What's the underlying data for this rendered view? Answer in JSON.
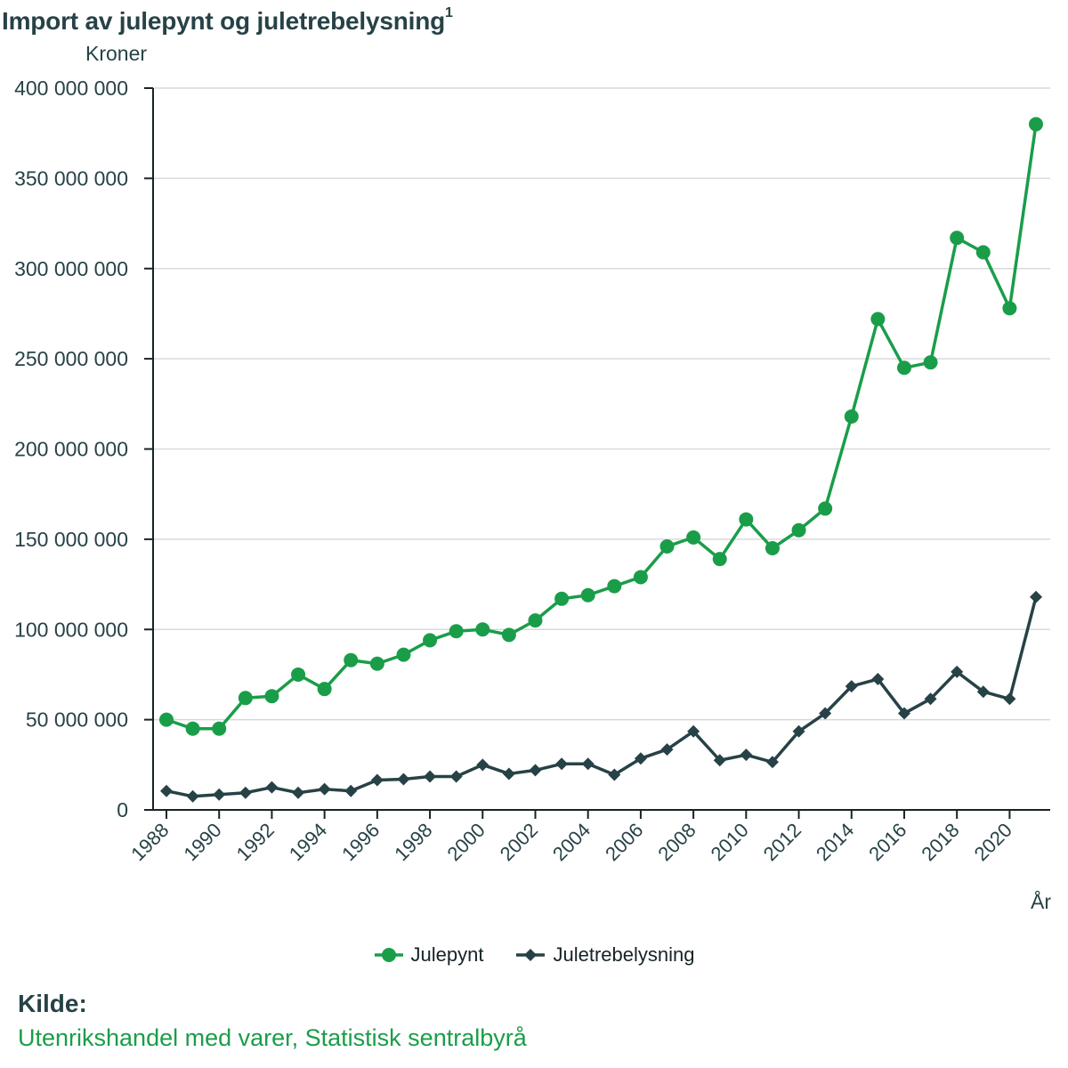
{
  "chart_data": {
    "type": "line",
    "title": "Import av julepynt og juletrebelysning",
    "title_superscript": "1",
    "ylabel": "Kroner",
    "xlabel": "År",
    "ylim": [
      0,
      400000000
    ],
    "xlim": [
      1988,
      2021
    ],
    "y_ticks": [
      {
        "value": 0,
        "label": "0"
      },
      {
        "value": 50000000,
        "label": "50 000 000"
      },
      {
        "value": 100000000,
        "label": "100 000 000"
      },
      {
        "value": 150000000,
        "label": "150 000 000"
      },
      {
        "value": 200000000,
        "label": "200 000 000"
      },
      {
        "value": 250000000,
        "label": "250 000 000"
      },
      {
        "value": 300000000,
        "label": "300 000 000"
      },
      {
        "value": 350000000,
        "label": "350 000 000"
      },
      {
        "value": 400000000,
        "label": "400 000 000"
      }
    ],
    "x_ticks": [
      1988,
      1990,
      1992,
      1994,
      1996,
      1998,
      2000,
      2002,
      2004,
      2006,
      2008,
      2010,
      2012,
      2014,
      2016,
      2018,
      2020
    ],
    "grid": "horizontal",
    "legend_position": "bottom-center",
    "x": [
      1988,
      1989,
      1990,
      1991,
      1992,
      1993,
      1994,
      1995,
      1996,
      1997,
      1998,
      1999,
      2000,
      2001,
      2002,
      2003,
      2004,
      2005,
      2006,
      2007,
      2008,
      2009,
      2010,
      2011,
      2012,
      2013,
      2014,
      2015,
      2016,
      2017,
      2018,
      2019,
      2020,
      2021
    ],
    "series": [
      {
        "name": "Julepynt",
        "color": "#1a9d49",
        "marker": "circle",
        "values": [
          50000000,
          45000000,
          45000000,
          62000000,
          63000000,
          75000000,
          67000000,
          83000000,
          81000000,
          86000000,
          94000000,
          99000000,
          100000000,
          97000000,
          105000000,
          117000000,
          119000000,
          124000000,
          129000000,
          146000000,
          151000000,
          139000000,
          161000000,
          145000000,
          155000000,
          167000000,
          218000000,
          272000000,
          245000000,
          248000000,
          317000000,
          309000000,
          278000000,
          380000000
        ]
      },
      {
        "name": "Juletrebelysning",
        "color": "#274247",
        "marker": "diamond",
        "values": [
          10500000,
          7500000,
          8500000,
          9500000,
          12500000,
          9500000,
          11500000,
          10500000,
          16500000,
          17000000,
          18500000,
          18500000,
          25000000,
          20000000,
          22000000,
          25500000,
          25500000,
          19500000,
          28500000,
          33500000,
          43500000,
          27500000,
          30500000,
          26500000,
          43500000,
          53500000,
          68500000,
          72500000,
          53500000,
          61500000,
          76500000,
          65500000,
          61500000,
          118000000
        ]
      }
    ]
  },
  "source": {
    "heading": "Kilde:",
    "text": "Utenrikshandel med varer, Statistisk sentralbyrå"
  }
}
